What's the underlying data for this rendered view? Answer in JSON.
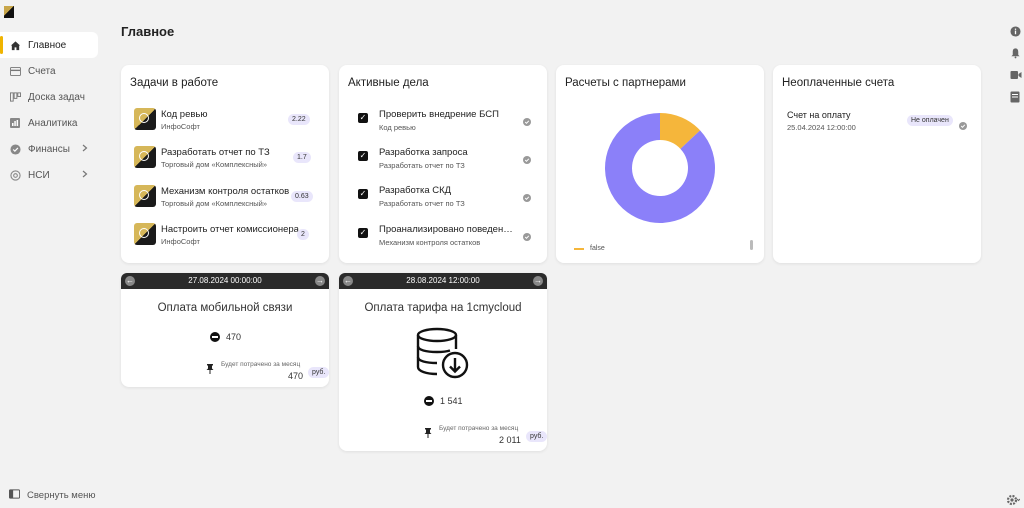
{
  "page": {
    "title": "Главное"
  },
  "sidebar": {
    "items": [
      {
        "label": "Главное",
        "icon": "home-icon"
      },
      {
        "label": "Счета",
        "icon": "card-icon"
      },
      {
        "label": "Доска задач",
        "icon": "board-icon"
      },
      {
        "label": "Аналитика",
        "icon": "chart-icon"
      },
      {
        "label": "Финансы",
        "icon": "finance-icon"
      },
      {
        "label": "НСИ",
        "icon": "reference-icon"
      }
    ],
    "collapse_label": "Свернуть меню"
  },
  "tasks": {
    "title": "Задачи в работе",
    "items": [
      {
        "name": "Код ревью",
        "org": "ИнфоСофт",
        "badge": "2.22"
      },
      {
        "name": "Разработать отчет по ТЗ",
        "org": "Торговый дом «Комплексный»",
        "badge": "1.7"
      },
      {
        "name": "Механизм контроля остатков",
        "org": "Торговый дом «Комплексный»",
        "badge": "0.63"
      },
      {
        "name": "Настроить отчет комиссионера",
        "org": "ИнфоСофт",
        "badge": "2"
      }
    ]
  },
  "deals": {
    "title": "Активные дела",
    "items": [
      {
        "name": "Проверить внедрение БСП",
        "task": "Код ревью"
      },
      {
        "name": "Разработка запроса",
        "task": "Разработать отчет по ТЗ"
      },
      {
        "name": "Разработка СКД",
        "task": "Разработать отчет по ТЗ"
      },
      {
        "name": "Проанализировано поведение механизма",
        "task": "Механизм контроля остатков"
      }
    ]
  },
  "partners": {
    "title": "Расчеты с партнерами",
    "chart_data": {
      "type": "pie",
      "categories": [
        "false",
        ""
      ],
      "values": [
        13,
        87
      ],
      "colors": [
        "#f5b63b",
        "#8b80f9"
      ],
      "legend": [
        "false"
      ],
      "legend_position": "bottom-left"
    }
  },
  "unpaid": {
    "title": "Неоплаченные счета",
    "items": [
      {
        "name": "Счет на оплату",
        "date": "25.04.2024 12:00:00",
        "status": "Не оплачен"
      }
    ]
  },
  "payments": [
    {
      "date": "27.08.2024 00:00:00",
      "title": "Оплата мобильной связи",
      "amount": "470",
      "month_label": "Будет потрачено за месяц",
      "month_total": "470",
      "currency": "руб."
    },
    {
      "date": "28.08.2024 12:00:00",
      "title": "Оплата тарифа на 1cmycloud",
      "amount": "1 541",
      "month_label": "Будет потрачено за месяц",
      "month_total": "2 011",
      "currency": "руб."
    }
  ]
}
